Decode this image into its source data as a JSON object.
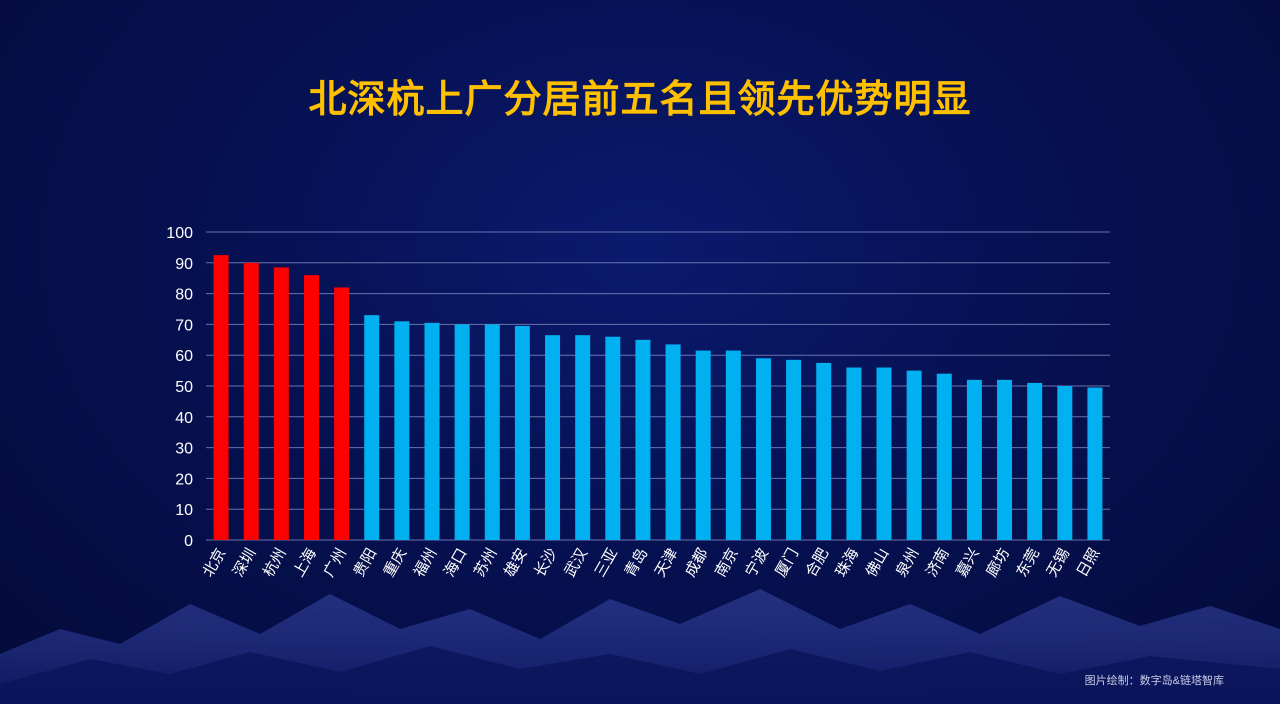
{
  "title": "北深杭上广分居前五名且领先优势明显",
  "credit": "图片绘制：数字岛&链塔智库",
  "colors": {
    "highlight": "#ff0000",
    "normal": "#00b0f0",
    "title": "#ffc000",
    "grid": "#8a93c8"
  },
  "chart_data": {
    "type": "bar",
    "categories": [
      "北京",
      "深圳",
      "杭州",
      "上海",
      "广州",
      "贵阳",
      "重庆",
      "福州",
      "海口",
      "苏州",
      "雄安",
      "长沙",
      "武汉",
      "三亚",
      "青岛",
      "天津",
      "成都",
      "南京",
      "宁波",
      "厦门",
      "合肥",
      "珠海",
      "佛山",
      "泉州",
      "济南",
      "嘉兴",
      "廊坊",
      "东莞",
      "无锡",
      "日照"
    ],
    "values": [
      92.5,
      90,
      88.5,
      86,
      82,
      73,
      71,
      70.5,
      70,
      70,
      69.5,
      66.5,
      66.5,
      66,
      65,
      63.5,
      61.5,
      61.5,
      59,
      58.5,
      57.5,
      56,
      56,
      55,
      54,
      52,
      52,
      51,
      50,
      49.5
    ],
    "highlight_count": 5,
    "ylim": [
      0,
      100
    ],
    "yticks": [
      0,
      10,
      20,
      30,
      40,
      50,
      60,
      70,
      80,
      90,
      100
    ],
    "grid": true,
    "xlabel": "",
    "ylabel": ""
  }
}
